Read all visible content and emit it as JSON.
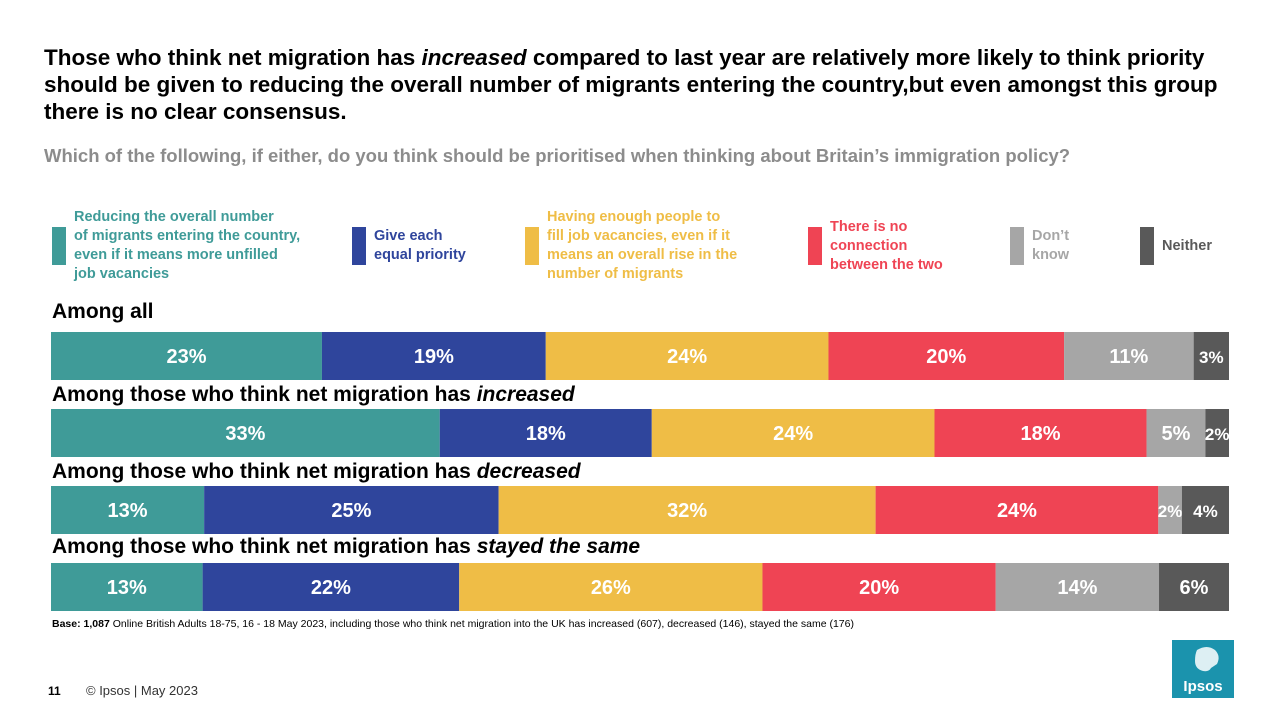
{
  "page": {
    "title_before": "Those who think net migration has ",
    "title_emphasis": "increased",
    "title_after": " compared to last year are relatively more likely to think priority should be given to reducing the overall number of migrants entering the country,but even amongst this group there is no clear consensus.",
    "subtitle": "Which of the following, if either, do you think should be prioritised when thinking about Britain’s immigration policy?",
    "base_label": "Base:",
    "base_count": "1,087",
    "base_text": " Online British Adults 18-75, 16 - 18 May 2023, including those who think net migration into the UK has increased (607), decreased (146), stayed the same (176)",
    "page_number": "11",
    "copyright": "© Ipsos | May 2023",
    "logo_text": "Ipsos"
  },
  "colors": {
    "reduce": "#3f9b98",
    "equal": "#2f459c",
    "enough": "#efbd46",
    "no_connection": "#ef4454",
    "dont_know": "#a6a6a6",
    "neither": "#595959",
    "logo": "#1b93ad"
  },
  "chart_data": {
    "type": "bar",
    "orientation": "horizontal-stacked-100",
    "categories": [
      {
        "prefix": "Among all",
        "emphasis": ""
      },
      {
        "prefix": "Among those who think net migration has ",
        "emphasis": "increased"
      },
      {
        "prefix": "Among those who think net migration has ",
        "emphasis": "decreased"
      },
      {
        "prefix": "Among those who think net migration has ",
        "emphasis": "stayed the same"
      }
    ],
    "series": [
      {
        "name": "Reducing the overall number of migrants entering the country, even if it means more unfilled job vacancies",
        "color_key": "reduce",
        "label_color": "#ffffff",
        "values": [
          23,
          33,
          13,
          13
        ]
      },
      {
        "name": "Give each equal priority",
        "color_key": "equal",
        "label_color": "#ffffff",
        "values": [
          19,
          18,
          25,
          22
        ]
      },
      {
        "name": "Having enough people to fill job vacancies, even if it means an overall rise in the number of migrants",
        "color_key": "enough",
        "label_color": "#ffffff",
        "values": [
          24,
          24,
          32,
          26
        ]
      },
      {
        "name": "There is no connection between the two",
        "color_key": "no_connection",
        "label_color": "#ffffff",
        "values": [
          20,
          18,
          24,
          20
        ]
      },
      {
        "name": "Don’t know",
        "color_key": "dont_know",
        "label_color": "#ffffff",
        "values": [
          11,
          5,
          2,
          14
        ]
      },
      {
        "name": "Neither",
        "color_key": "neither",
        "label_color": "#ffffff",
        "values": [
          3,
          2,
          4,
          6
        ]
      }
    ],
    "legend": [
      {
        "lines": [
          "Reducing the overall number",
          "of migrants entering the country,",
          "even if it means more unfilled",
          "job vacancies"
        ],
        "color_key": "reduce",
        "text_color": "#3f9b98"
      },
      {
        "lines": [
          "Give each",
          "equal priority"
        ],
        "color_key": "equal",
        "text_color": "#2f459c"
      },
      {
        "lines": [
          "Having enough people to",
          "fill job vacancies, even if it",
          "means an overall rise in the",
          "number of migrants"
        ],
        "color_key": "enough",
        "text_color": "#efbd46"
      },
      {
        "lines": [
          "There is no",
          "connection",
          "between the two"
        ],
        "color_key": "no_connection",
        "text_color": "#ef4454"
      },
      {
        "lines": [
          "Don’t",
          "know"
        ],
        "color_key": "dont_know",
        "text_color": "#a6a6a6"
      },
      {
        "lines": [
          "Neither"
        ],
        "color_key": "neither",
        "text_color": "#595959"
      }
    ],
    "value_suffix": "%",
    "xlim": [
      0,
      100
    ],
    "legend_position": "top"
  }
}
